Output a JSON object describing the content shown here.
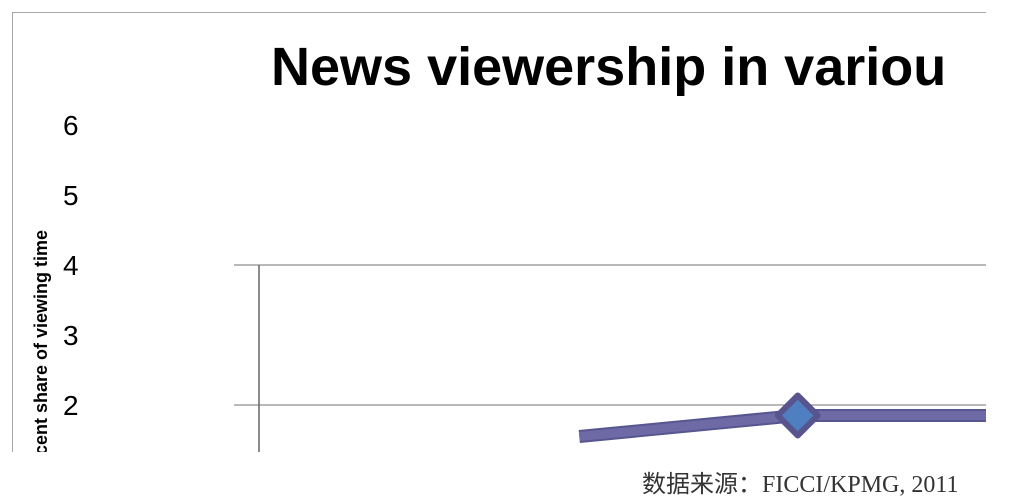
{
  "colors": {
    "background": "#ffffff",
    "frame_line": "#a8a8a8",
    "grid_line": "#8f8f8f",
    "axis_line": "#666666",
    "series_line": "#6e6aa5",
    "series_line_dark": "#57568f",
    "marker_fill": "#4f7fc0",
    "marker_stroke": "#58548e",
    "text": "#000000",
    "source_text": "#333333"
  },
  "chart": {
    "title": "News viewership in variou",
    "y_axis_title": "cent share of viewing time"
  },
  "chart_data": {
    "type": "line",
    "title": "News viewership in variou",
    "xlabel": "",
    "ylabel": "cent share of viewing time",
    "ylim": [
      1.7,
      6
    ],
    "yticks": [
      6,
      5,
      4,
      3,
      2
    ],
    "grid": true,
    "gridlines_y": [
      4,
      2
    ],
    "series": [
      {
        "points": [
          {
            "x": 0.44,
            "y": 1.55,
            "marker": false
          },
          {
            "x": 0.74,
            "y": 1.85,
            "marker": true
          },
          {
            "x": 1.0,
            "y": 1.85,
            "marker": false
          }
        ]
      }
    ]
  },
  "source": {
    "text": "数据来源：FICCI/KPMG, 2011"
  }
}
